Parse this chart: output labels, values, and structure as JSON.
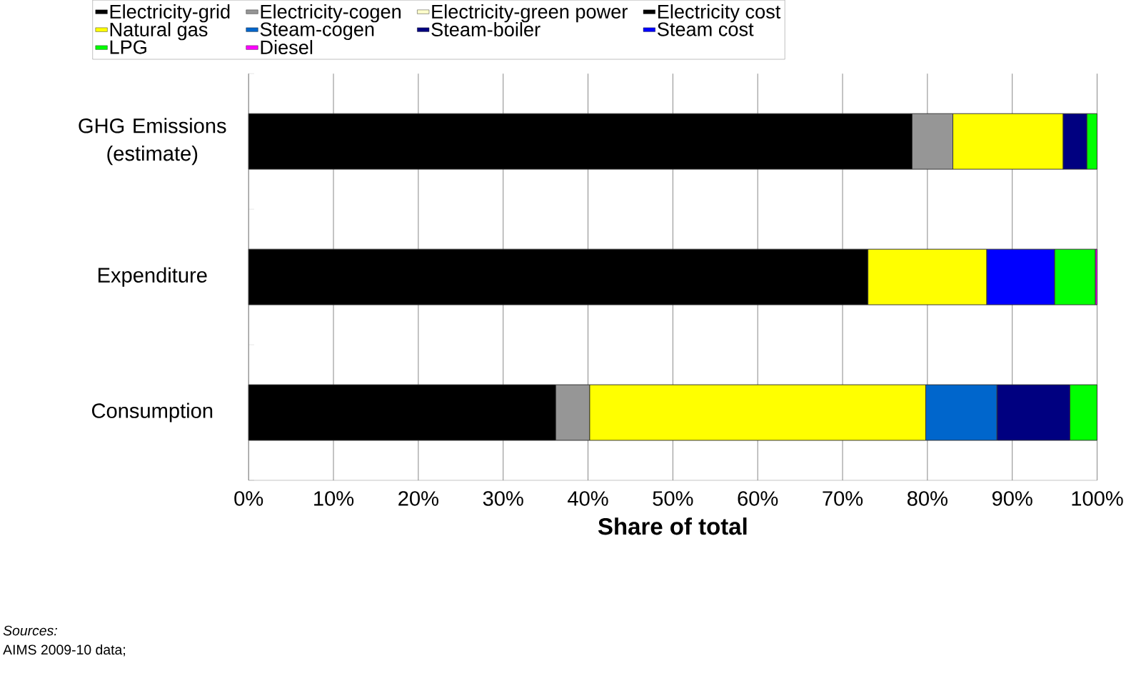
{
  "chart_data": {
    "type": "bar",
    "orientation": "horizontal",
    "stacked": true,
    "categories": [
      "GHG Emissions (estimate)",
      "Expenditure",
      "Consumption"
    ],
    "series": [
      {
        "name": "Electricity-grid",
        "color": "#000000",
        "values": [
          78.2,
          null,
          36.2
        ]
      },
      {
        "name": "Electricity-cogen",
        "color": "#969696",
        "values": [
          4.8,
          null,
          4.0
        ]
      },
      {
        "name": "Electricity-green power",
        "color": "#ffffcc",
        "values": [
          null,
          null,
          null
        ]
      },
      {
        "name": "Electricity cost",
        "color": "#000000",
        "values": [
          null,
          73.0,
          null
        ]
      },
      {
        "name": "Natural gas",
        "color": "#ffff00",
        "values": [
          13.0,
          14.0,
          39.6
        ]
      },
      {
        "name": "Steam-cogen",
        "color": "#0066cc",
        "values": [
          null,
          null,
          8.4
        ]
      },
      {
        "name": "Steam-boiler",
        "color": "#000080",
        "values": [
          2.8,
          null,
          8.6
        ]
      },
      {
        "name": "Steam cost",
        "color": "#0000ff",
        "values": [
          null,
          8.0,
          null
        ]
      },
      {
        "name": "LPG",
        "color": "#00ff00",
        "values": [
          1.2,
          4.8,
          3.2
        ]
      },
      {
        "name": "Diesel",
        "color": "#ff00ff",
        "values": [
          null,
          0.2,
          null
        ]
      }
    ],
    "xlim": [
      0,
      100
    ],
    "xticks": [
      {
        "value": 0,
        "label": "0%"
      },
      {
        "value": 10,
        "label": "10%"
      },
      {
        "value": 20,
        "label": "20%"
      },
      {
        "value": 30,
        "label": "30%"
      },
      {
        "value": 40,
        "label": "40%"
      },
      {
        "value": 50,
        "label": "50%"
      },
      {
        "value": 60,
        "label": "60%"
      },
      {
        "value": 70,
        "label": "70%"
      },
      {
        "value": 80,
        "label": "80%"
      },
      {
        "value": 90,
        "label": "90%"
      },
      {
        "value": 100,
        "label": "100%"
      }
    ],
    "xlabel": "Share of total",
    "grid": "x",
    "legend": "top",
    "annotations": [
      "*Sources:*",
      "AIMS 2009-10 data;"
    ]
  }
}
